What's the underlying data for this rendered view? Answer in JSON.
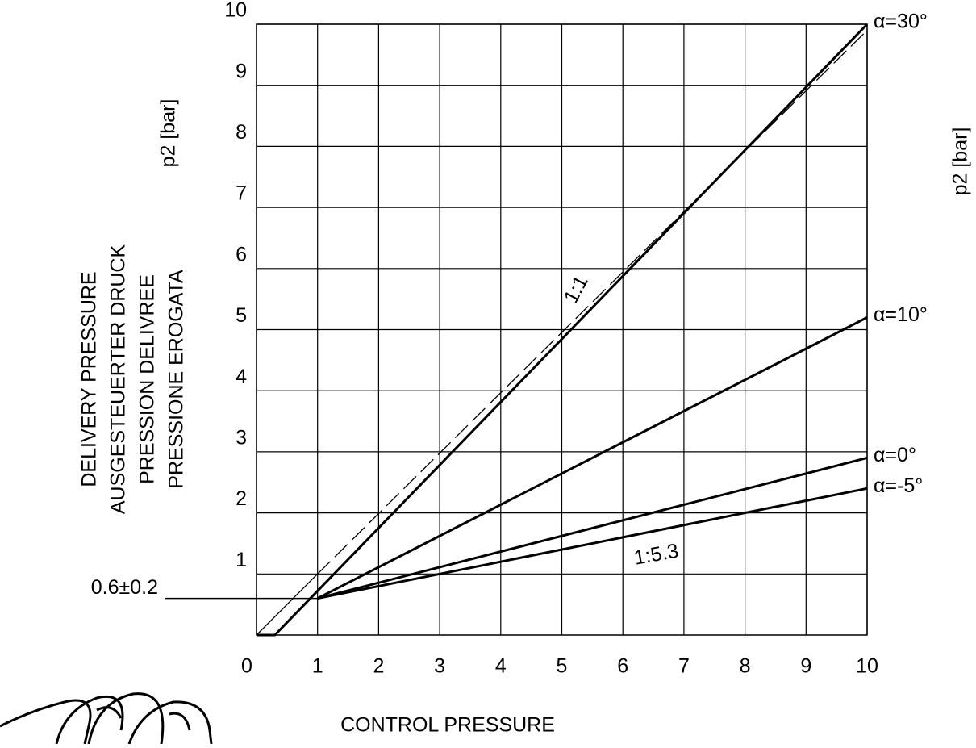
{
  "chart_data": {
    "type": "line",
    "y_label": [
      "DELIVERY PRESSURE",
      "AUSGESTEUERTER DRUCK",
      "PRESSION DELIVREE",
      "PRESSIONE EROGATA"
    ],
    "y_unit": "p2 [bar]",
    "right_label": "p2 [bar]",
    "x_label": "CONTROL PRESSURE",
    "xlim": [
      0,
      10
    ],
    "ylim": [
      0,
      10
    ],
    "xticks": [
      0,
      1,
      2,
      3,
      4,
      5,
      6,
      7,
      8,
      9,
      10
    ],
    "yticks": [
      1,
      2,
      3,
      4,
      5,
      6,
      7,
      8,
      9,
      10
    ],
    "grid": true,
    "series": [
      {
        "name": "α=30°",
        "color": "#000",
        "width": 3,
        "x": [
          0,
          0.3,
          10
        ],
        "values": [
          0,
          0,
          10
        ]
      },
      {
        "color": "#000",
        "width": 1.3,
        "x": [
          0,
          1
        ],
        "values": [
          0,
          1
        ]
      },
      {
        "color": "#000",
        "width": 1.3,
        "dashed": true,
        "x": [
          1,
          10
        ],
        "values": [
          1,
          9.9
        ]
      },
      {
        "name": "α=10°",
        "color": "#000",
        "width": 3,
        "x": [
          1,
          10
        ],
        "values": [
          0.6,
          5.2
        ]
      },
      {
        "name": "α=0°",
        "color": "#000",
        "width": 3,
        "x": [
          1,
          10
        ],
        "values": [
          0.6,
          2.9
        ]
      },
      {
        "name": "α=-5°",
        "color": "#000",
        "width": 3,
        "x": [
          1,
          10
        ],
        "values": [
          0.6,
          2.4
        ]
      }
    ],
    "annotations": [
      "1:1",
      "1:5.3"
    ],
    "reference_line": {
      "label": "0.6±0.2",
      "value": 0.6
    }
  }
}
